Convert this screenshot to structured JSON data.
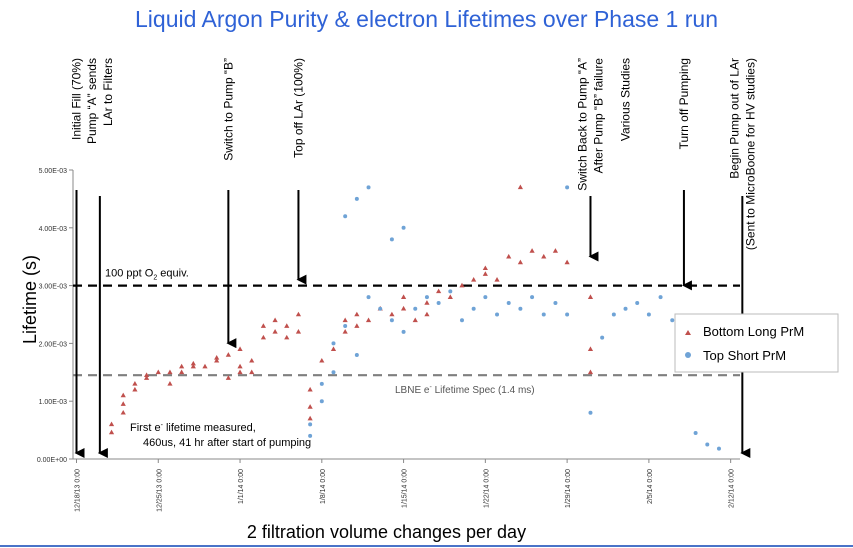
{
  "title": "Liquid Argon Purity & electron Lifetimes over Phase 1 run",
  "colors": {
    "title": "#2f62d6",
    "bottom": "#c0504d",
    "top": "#6fa3d6",
    "o2line": "#000000",
    "specline": "#7f7f7f"
  },
  "chart_data": {
    "type": "scatter",
    "xlabel": "2 filtration volume changes per day",
    "ylabel": "Lifetime (s)",
    "x_ticks": [
      "12/18/13 0:00",
      "12/25/13 0:00",
      "1/1/14 0:00",
      "1/8/14 0:00",
      "1/15/14 0:00",
      "1/22/14 0:00",
      "1/29/14 0:00",
      "2/5/14 0:00",
      "2/12/14 0:00"
    ],
    "xlim": [
      "12/18/13",
      "2/12/14"
    ],
    "y_ticks": [
      "0.00E+00",
      "1.00E-03",
      "2.00E-03",
      "3.00E-03",
      "4.00E-03",
      "5.00E-03"
    ],
    "ylim": [
      0,
      0.005
    ],
    "grid": false,
    "legend_position": "right",
    "legend": [
      "Bottom Long PrM",
      "Top Short PrM"
    ],
    "reference_lines": [
      {
        "label_main": "100 ppt O",
        "label_sub": "2",
        "label_tail": " equiv.",
        "y": 0.003,
        "style": "dashed",
        "color": "black"
      },
      {
        "label_main": "LBNE e",
        "label_sup": "-",
        "label_tail": " Lifetime Spec (1.4 ms)",
        "y": 0.00145,
        "style": "dashed",
        "color": "gray"
      }
    ],
    "events": [
      {
        "lines": [
          "Initial Fill (70%)"
        ],
        "date": "12/18/13",
        "arrow_to": 0
      },
      {
        "lines": [
          "Pump “A” sends",
          "LAr to Filters"
        ],
        "date": "12/20/13",
        "arrow_to": 0
      },
      {
        "lines": [
          "Switch to Pump “B”"
        ],
        "date": "12/31/13",
        "arrow_to": 0.0019
      },
      {
        "lines": [
          "Top off LAr  (100%)"
        ],
        "date": "1/6/14",
        "arrow_to": 0.003
      },
      {
        "lines": [
          "Switch Back to Pump “A”",
          "After Pump “B” failure"
        ],
        "date": "1/31/14",
        "arrow_to": 0.0034
      },
      {
        "lines": [
          "Various Studies"
        ],
        "date": "2/3/14",
        "arrow_to": null
      },
      {
        "lines": [
          "Turn off Pumping"
        ],
        "date": "2/8/14",
        "arrow_to": 0.0029
      },
      {
        "lines": [
          "Begin Pump out of LAr",
          "(Sent to MicroBoone for HV studies)"
        ],
        "date": "2/13/14",
        "arrow_to": 0
      }
    ],
    "annotations": [
      {
        "lines": [
          "First e",
          "lifetime measured,",
          "460us, 41 hr after start of pumping"
        ],
        "sup": "-"
      }
    ],
    "series": [
      {
        "name": "Bottom Long PrM",
        "marker": "triangle",
        "points": [
          [
            "12/21/13",
            0.00046
          ],
          [
            "12/21/13",
            0.0006
          ],
          [
            "12/22/13",
            0.0008
          ],
          [
            "12/22/13",
            0.00095
          ],
          [
            "12/22/13",
            0.0011
          ],
          [
            "12/23/13",
            0.0012
          ],
          [
            "12/23/13",
            0.0013
          ],
          [
            "12/24/13",
            0.0014
          ],
          [
            "12/24/13",
            0.00145
          ],
          [
            "12/25/13",
            0.0015
          ],
          [
            "12/26/13",
            0.0013
          ],
          [
            "12/26/13",
            0.0015
          ],
          [
            "12/27/13",
            0.0016
          ],
          [
            "12/27/13",
            0.0015
          ],
          [
            "12/28/13",
            0.0016
          ],
          [
            "12/28/13",
            0.00165
          ],
          [
            "12/29/13",
            0.0016
          ],
          [
            "12/30/13",
            0.0017
          ],
          [
            "12/30/13",
            0.00175
          ],
          [
            "12/31/13",
            0.0018
          ],
          [
            "12/31/13",
            0.0014
          ],
          [
            "1/1/14",
            0.0015
          ],
          [
            "1/1/14",
            0.0016
          ],
          [
            "1/1/14",
            0.0019
          ],
          [
            "1/2/14",
            0.0017
          ],
          [
            "1/2/14",
            0.0015
          ],
          [
            "1/3/14",
            0.0021
          ],
          [
            "1/3/14",
            0.0023
          ],
          [
            "1/4/14",
            0.0022
          ],
          [
            "1/4/14",
            0.0024
          ],
          [
            "1/5/14",
            0.0023
          ],
          [
            "1/5/14",
            0.0021
          ],
          [
            "1/6/14",
            0.0022
          ],
          [
            "1/6/14",
            0.0025
          ],
          [
            "1/7/14",
            0.0007
          ],
          [
            "1/7/14",
            0.0009
          ],
          [
            "1/7/14",
            0.0012
          ],
          [
            "1/8/14",
            0.0017
          ],
          [
            "1/9/14",
            0.0019
          ],
          [
            "1/10/14",
            0.0022
          ],
          [
            "1/10/14",
            0.0024
          ],
          [
            "1/11/14",
            0.0023
          ],
          [
            "1/11/14",
            0.0025
          ],
          [
            "1/12/14",
            0.0024
          ],
          [
            "1/13/14",
            0.0026
          ],
          [
            "1/14/14",
            0.0025
          ],
          [
            "1/15/14",
            0.0028
          ],
          [
            "1/15/14",
            0.0026
          ],
          [
            "1/16/14",
            0.0024
          ],
          [
            "1/17/14",
            0.0025
          ],
          [
            "1/17/14",
            0.0027
          ],
          [
            "1/18/14",
            0.0029
          ],
          [
            "1/19/14",
            0.0028
          ],
          [
            "1/20/14",
            0.003
          ],
          [
            "1/21/14",
            0.0031
          ],
          [
            "1/22/14",
            0.0032
          ],
          [
            "1/22/14",
            0.0033
          ],
          [
            "1/23/14",
            0.0031
          ],
          [
            "1/24/14",
            0.0035
          ],
          [
            "1/25/14",
            0.0034
          ],
          [
            "1/26/14",
            0.0036
          ],
          [
            "1/27/14",
            0.0035
          ],
          [
            "1/28/14",
            0.0036
          ],
          [
            "1/29/14",
            0.0034
          ],
          [
            "1/25/14",
            0.0047
          ],
          [
            "1/31/14",
            0.0019
          ],
          [
            "1/31/14",
            0.0015
          ],
          [
            "1/31/14",
            0.0028
          ]
        ]
      },
      {
        "name": "Top Short PrM",
        "marker": "circle",
        "points": [
          [
            "1/7/14",
            0.0004
          ],
          [
            "1/7/14",
            0.0006
          ],
          [
            "1/8/14",
            0.001
          ],
          [
            "1/8/14",
            0.0013
          ],
          [
            "1/9/14",
            0.0015
          ],
          [
            "1/9/14",
            0.002
          ],
          [
            "1/10/14",
            0.0023
          ],
          [
            "1/10/14",
            0.0042
          ],
          [
            "1/11/14",
            0.0018
          ],
          [
            "1/11/14",
            0.0045
          ],
          [
            "1/12/14",
            0.0047
          ],
          [
            "1/12/14",
            0.0028
          ],
          [
            "1/13/14",
            0.0026
          ],
          [
            "1/14/14",
            0.0024
          ],
          [
            "1/14/14",
            0.0038
          ],
          [
            "1/15/14",
            0.004
          ],
          [
            "1/15/14",
            0.0022
          ],
          [
            "1/16/14",
            0.0026
          ],
          [
            "1/17/14",
            0.0028
          ],
          [
            "1/18/14",
            0.0027
          ],
          [
            "1/19/14",
            0.0029
          ],
          [
            "1/20/14",
            0.0024
          ],
          [
            "1/21/14",
            0.0026
          ],
          [
            "1/22/14",
            0.0028
          ],
          [
            "1/23/14",
            0.0025
          ],
          [
            "1/24/14",
            0.0027
          ],
          [
            "1/25/14",
            0.0026
          ],
          [
            "1/26/14",
            0.0028
          ],
          [
            "1/27/14",
            0.0025
          ],
          [
            "1/28/14",
            0.0027
          ],
          [
            "1/29/14",
            0.0025
          ],
          [
            "1/29/14",
            0.0047
          ],
          [
            "1/31/14",
            0.0008
          ],
          [
            "2/1/14",
            0.0021
          ],
          [
            "2/2/14",
            0.0025
          ],
          [
            "2/3/14",
            0.0026
          ],
          [
            "2/4/14",
            0.0027
          ],
          [
            "2/5/14",
            0.0025
          ],
          [
            "2/6/14",
            0.0028
          ],
          [
            "2/7/14",
            0.0024
          ],
          [
            "2/8/14",
            0.0018
          ],
          [
            "2/9/14",
            0.00045
          ],
          [
            "2/10/14",
            0.00025
          ],
          [
            "2/11/14",
            0.00018
          ]
        ]
      }
    ]
  }
}
